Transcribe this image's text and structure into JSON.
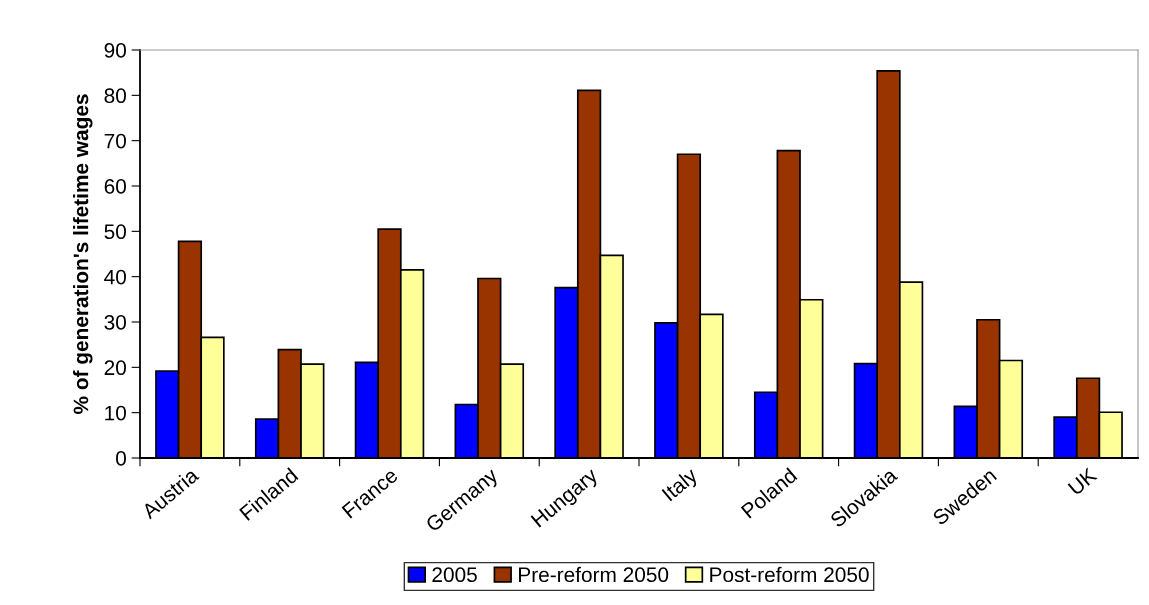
{
  "chart_data": {
    "type": "bar",
    "ylabel": "% of generation's lifetime wages",
    "categories": [
      "Austria",
      "Finland",
      "France",
      "Germany",
      "Hungary",
      "Italy",
      "Poland",
      "Slovakia",
      "Sweden",
      "UK"
    ],
    "series": [
      {
        "name": "2005",
        "color": "#0000ff",
        "values": [
          19.2,
          8.6,
          21.1,
          11.8,
          37.6,
          29.8,
          14.5,
          20.8,
          11.4,
          9.0
        ]
      },
      {
        "name": "Pre-reform 2050",
        "color": "#993300",
        "values": [
          47.8,
          23.9,
          50.5,
          39.6,
          81.1,
          67.0,
          67.8,
          85.4,
          30.5,
          17.6
        ]
      },
      {
        "name": "Post-reform 2050",
        "color": "#ffff99",
        "values": [
          26.6,
          20.7,
          41.5,
          20.7,
          44.7,
          31.7,
          34.9,
          38.8,
          21.5,
          10.1
        ]
      }
    ],
    "ylim": [
      0,
      90
    ],
    "yticks": [
      0,
      10,
      20,
      30,
      40,
      50,
      60,
      70,
      80,
      90
    ],
    "grid": false,
    "legend": "bottom"
  }
}
